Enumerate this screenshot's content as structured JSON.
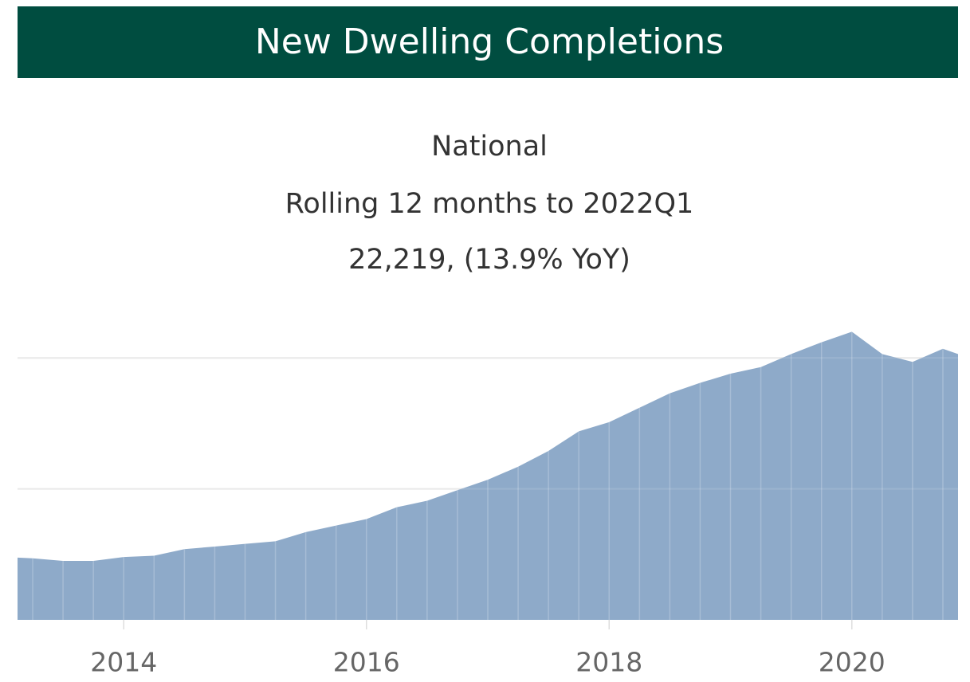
{
  "chart_data": {
    "type": "area",
    "title": "New Dwelling Completions",
    "subtitle": [
      "National",
      "Rolling 12 months to 2022Q1",
      "22,219, (13.9% YoY)"
    ],
    "x": [
      2013.0,
      2013.25,
      2013.5,
      2013.75,
      2014.0,
      2014.25,
      2014.5,
      2014.75,
      2015.0,
      2015.25,
      2015.5,
      2015.75,
      2016.0,
      2016.25,
      2016.5,
      2016.75,
      2017.0,
      2017.25,
      2017.5,
      2017.75,
      2018.0,
      2018.25,
      2018.5,
      2018.75,
      2019.0,
      2019.25,
      2019.5,
      2019.75,
      2020.0,
      2020.25,
      2020.5,
      2020.75,
      2021.0
    ],
    "values": [
      4800,
      4700,
      4500,
      4500,
      4800,
      4900,
      5400,
      5600,
      5800,
      6000,
      6700,
      7200,
      7700,
      8600,
      9100,
      9900,
      10700,
      11700,
      12900,
      14400,
      15100,
      16200,
      17300,
      18100,
      18800,
      19300,
      20300,
      21200,
      22000,
      20300,
      19700,
      20700,
      19900
    ],
    "color": "#8eaac9",
    "xlim": [
      2013.125,
      2020.875
    ],
    "xticks": [
      2014,
      2016,
      2018,
      2020
    ],
    "ylim": [
      0,
      23000
    ],
    "yticks": [
      10000,
      20000
    ],
    "grid": true,
    "header_color": "#004d40"
  }
}
